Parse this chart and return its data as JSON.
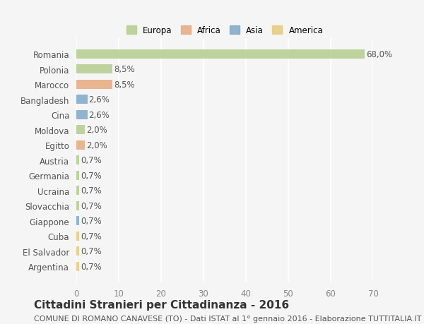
{
  "countries": [
    "Romania",
    "Polonia",
    "Marocco",
    "Bangladesh",
    "Cina",
    "Moldova",
    "Egitto",
    "Austria",
    "Germania",
    "Ucraina",
    "Slovacchia",
    "Giappone",
    "Cuba",
    "El Salvador",
    "Argentina"
  ],
  "values": [
    68.0,
    8.5,
    8.5,
    2.6,
    2.6,
    2.0,
    2.0,
    0.7,
    0.7,
    0.7,
    0.7,
    0.7,
    0.7,
    0.7,
    0.7
  ],
  "labels": [
    "68,0%",
    "8,5%",
    "8,5%",
    "2,6%",
    "2,6%",
    "2,0%",
    "2,0%",
    "0,7%",
    "0,7%",
    "0,7%",
    "0,7%",
    "0,7%",
    "0,7%",
    "0,7%",
    "0,7%"
  ],
  "colors": [
    "#b5cc8e",
    "#b5cc8e",
    "#e8a97e",
    "#7ea8c9",
    "#7ea8c9",
    "#b5cc8e",
    "#e8a97e",
    "#b5cc8e",
    "#b5cc8e",
    "#b5cc8e",
    "#b5cc8e",
    "#7ea8c9",
    "#e8c97e",
    "#e8c97e",
    "#e8c97e"
  ],
  "continents": [
    "Europa",
    "Europa",
    "Africa",
    "Asia",
    "Asia",
    "Europa",
    "Africa",
    "Europa",
    "Europa",
    "Europa",
    "Europa",
    "Asia",
    "America",
    "America",
    "America"
  ],
  "legend_labels": [
    "Europa",
    "Africa",
    "Asia",
    "America"
  ],
  "legend_colors": [
    "#b5cc8e",
    "#e8a97e",
    "#7ea8c9",
    "#e8c97e"
  ],
  "xlim": [
    0,
    70
  ],
  "xticks": [
    0,
    10,
    20,
    30,
    40,
    50,
    60,
    70
  ],
  "title": "Cittadini Stranieri per Cittadinanza - 2016",
  "subtitle": "COMUNE DI ROMANO CANAVESE (TO) - Dati ISTAT al 1° gennaio 2016 - Elaborazione TUTTITALIA.IT",
  "background_color": "#f5f5f5",
  "bar_height": 0.6,
  "label_fontsize": 8.5,
  "title_fontsize": 11,
  "subtitle_fontsize": 8
}
